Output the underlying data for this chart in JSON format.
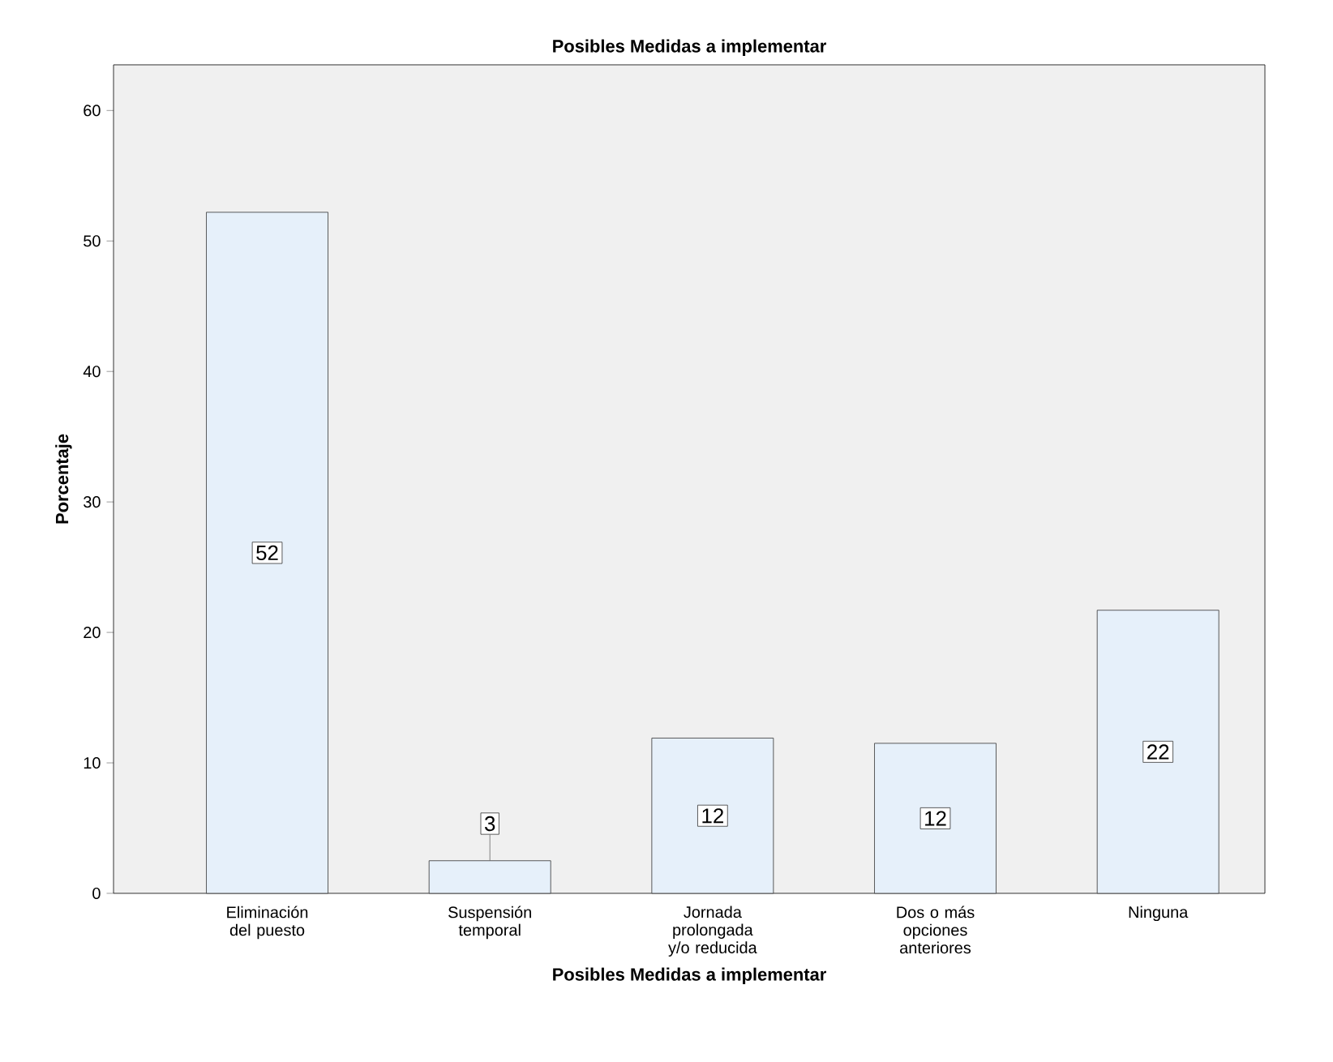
{
  "chart_data": {
    "type": "bar",
    "title": "Posibles Medidas a implementar",
    "xlabel": "Posibles Medidas a implementar",
    "ylabel": "Porcentaje",
    "categories": [
      "Eliminación del puesto",
      "Suspensión temporal",
      "Jornada prolongada y/o reducida",
      "Dos o más opciones anteriores",
      "Ninguna"
    ],
    "values": [
      52.2,
      2.5,
      11.9,
      11.5,
      21.7
    ],
    "value_labels": [
      "52",
      "3",
      "12",
      "12",
      "22"
    ],
    "color": "#e6f0fa",
    "ylim": [
      0,
      63.5
    ],
    "yticks": [
      0,
      10,
      20,
      30,
      40,
      50,
      60
    ],
    "grid": false
  }
}
